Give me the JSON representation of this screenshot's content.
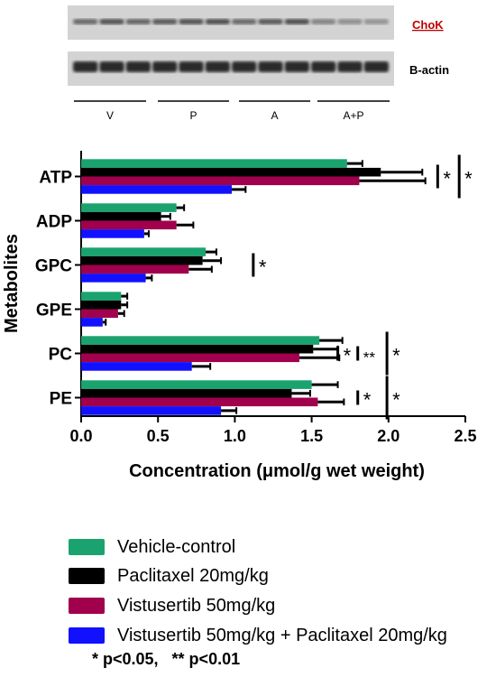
{
  "blot": {
    "lanes": [
      {
        "name": "ChoK",
        "bands": [
          0.55,
          0.75,
          0.6,
          0.7,
          0.75,
          0.8,
          0.55,
          0.7,
          0.8,
          0.3,
          0.2,
          0.15
        ]
      },
      {
        "name": "B-actin",
        "bands": [
          1,
          1,
          1,
          1,
          1,
          1,
          1,
          1,
          1,
          1,
          1,
          1
        ]
      }
    ],
    "groups": [
      "V",
      "P",
      "A",
      "A+P"
    ]
  },
  "chart_data": {
    "type": "bar",
    "orientation": "horizontal",
    "categories": [
      "ATP",
      "ADP",
      "GPC",
      "GPE",
      "PC",
      "PE"
    ],
    "ylabel": "Metabolites",
    "xlabel": "Concentration (μmol/g wet weight)",
    "xlim": [
      0,
      2.5
    ],
    "xticks": [
      "0.0",
      "0.5",
      "1.0",
      "1.5",
      "2.0",
      "2.5"
    ],
    "series": [
      {
        "name": "Vehicle-control",
        "color": "#1aa36f",
        "values": [
          1.73,
          0.62,
          0.81,
          0.26,
          1.55,
          1.5
        ],
        "errors": [
          0.1,
          0.05,
          0.07,
          0.04,
          0.15,
          0.17
        ]
      },
      {
        "name": "Paclitaxel 20mg/kg",
        "color": "#000000",
        "values": [
          1.95,
          0.52,
          0.79,
          0.26,
          1.51,
          1.37
        ],
        "errors": [
          0.27,
          0.06,
          0.12,
          0.04,
          0.16,
          0.12
        ]
      },
      {
        "name": "Vistusertib 50mg/kg",
        "color": "#a1004d",
        "values": [
          1.81,
          0.62,
          0.7,
          0.24,
          1.42,
          1.54
        ],
        "errors": [
          0.43,
          0.11,
          0.15,
          0.04,
          0.26,
          0.17
        ]
      },
      {
        "name": "Vistusertib 50mg/kg + Paclitaxel 20mg/kg",
        "color": "#1111ff",
        "values": [
          0.98,
          0.41,
          0.42,
          0.14,
          0.72,
          0.91
        ],
        "errors": [
          0.09,
          0.03,
          0.04,
          0.02,
          0.12,
          0.1
        ]
      }
    ],
    "annotations": [
      {
        "category": "ATP",
        "at": 2.32,
        "text": "*",
        "span": "inner"
      },
      {
        "category": "ATP",
        "at": 2.46,
        "text": "*",
        "span": "outer"
      },
      {
        "category": "GPC",
        "at": 1.12,
        "text": "*",
        "span": "inner"
      },
      {
        "category": "PC",
        "at": 1.67,
        "text": "*",
        "span": "short"
      },
      {
        "category": "PC",
        "at": 1.8,
        "text": "**",
        "span": "short"
      },
      {
        "category": "PC",
        "at": 1.99,
        "text": "*",
        "span": "outer"
      },
      {
        "category": "PE",
        "at": 1.8,
        "text": "*",
        "span": "short"
      },
      {
        "category": "PE",
        "at": 1.99,
        "text": "*",
        "span": "outer"
      }
    ]
  },
  "footnote": "* p<0.05,   ** p<0.01"
}
